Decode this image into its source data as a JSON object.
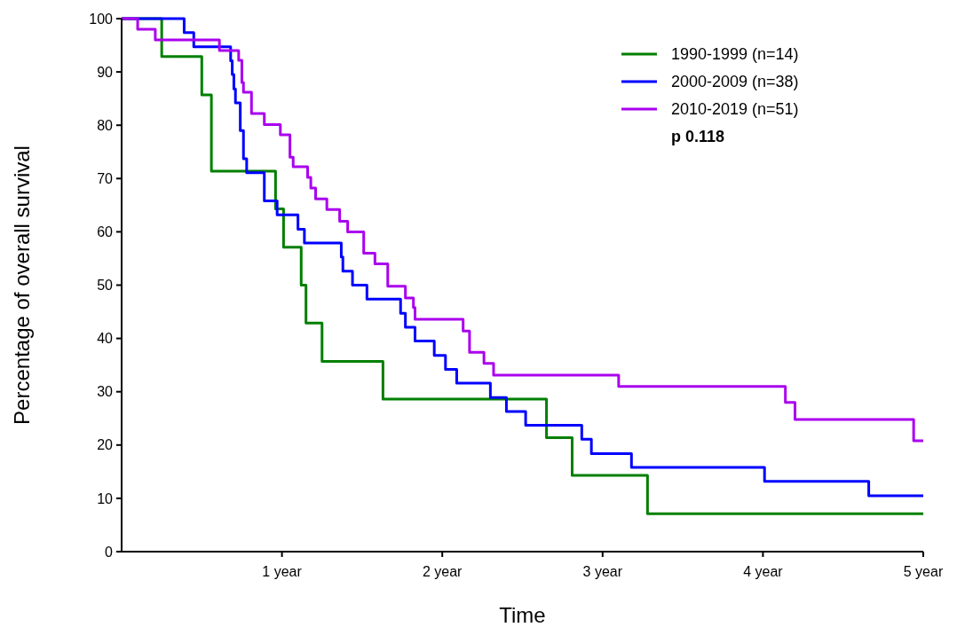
{
  "chart_data": {
    "type": "step",
    "xlabel": "Time",
    "ylabel": "Percentage of overall survival",
    "xlim": [
      0,
      5
    ],
    "ylim": [
      0,
      100
    ],
    "xticks": [
      {
        "value": 1,
        "label": "1 year"
      },
      {
        "value": 2,
        "label": "2 year"
      },
      {
        "value": 3,
        "label": "3 year"
      },
      {
        "value": 4,
        "label": "4 year"
      },
      {
        "value": 5,
        "label": "5 year"
      }
    ],
    "yticks": [
      0,
      10,
      20,
      30,
      40,
      50,
      60,
      70,
      80,
      90,
      100
    ],
    "grid": false,
    "legend": "top right",
    "annotations": [
      "p 0.118"
    ],
    "line_style": "solid",
    "marker": "none",
    "series": [
      {
        "name": "1990-1999 (n=14)",
        "color": "#007f00",
        "x": [
          0,
          0.25,
          0.5,
          0.56,
          0.96,
          1.01,
          1.12,
          1.15,
          1.25,
          1.63,
          2.65,
          2.81,
          3.28,
          5
        ],
        "values": [
          100,
          92.9,
          85.7,
          71.4,
          64.3,
          57.1,
          50,
          42.9,
          35.7,
          28.6,
          21.4,
          14.3,
          7.1,
          7.1
        ]
      },
      {
        "name": "2000-2009 (n=38)",
        "color": "#0000ff",
        "x": [
          0,
          0.39,
          0.45,
          0.68,
          0.69,
          0.7,
          0.71,
          0.74,
          0.76,
          0.78,
          0.89,
          0.97,
          1.1,
          1.14,
          1.37,
          1.38,
          1.44,
          1.53,
          1.74,
          1.77,
          1.83,
          1.95,
          2.02,
          2.09,
          2.3,
          2.4,
          2.52,
          2.87,
          2.93,
          3.18,
          4.01,
          4.66,
          5
        ],
        "values": [
          100,
          97.4,
          94.7,
          92.1,
          89.5,
          86.8,
          84.2,
          79,
          73.7,
          71.1,
          65.8,
          63.2,
          60.5,
          57.9,
          55.3,
          52.6,
          50,
          47.4,
          44.7,
          42.1,
          39.5,
          36.8,
          34.2,
          31.6,
          28.9,
          26.3,
          23.7,
          21.1,
          18.4,
          15.8,
          13.2,
          10.5,
          10.5
        ]
      },
      {
        "name": "2010-2019 (n=51)",
        "color": "#aa00ee",
        "x": [
          0,
          0.1,
          0.21,
          0.61,
          0.73,
          0.75,
          0.76,
          0.81,
          0.89,
          0.99,
          1.05,
          1.07,
          1.16,
          1.18,
          1.21,
          1.28,
          1.36,
          1.41,
          1.51,
          1.58,
          1.66,
          1.77,
          1.82,
          1.83,
          2.13,
          2.17,
          2.26,
          2.32,
          3.1,
          4.14,
          4.2,
          4.94,
          5
        ],
        "values": [
          100,
          98,
          96,
          94,
          92.2,
          88,
          86.2,
          82.2,
          80.1,
          78.2,
          74,
          72.2,
          70.2,
          68.2,
          66.2,
          64.2,
          62,
          60,
          56,
          54,
          49.8,
          47.6,
          45.8,
          43.6,
          41.4,
          37.4,
          35.3,
          33.1,
          31,
          28,
          24.8,
          20.8,
          20.8
        ]
      }
    ]
  }
}
